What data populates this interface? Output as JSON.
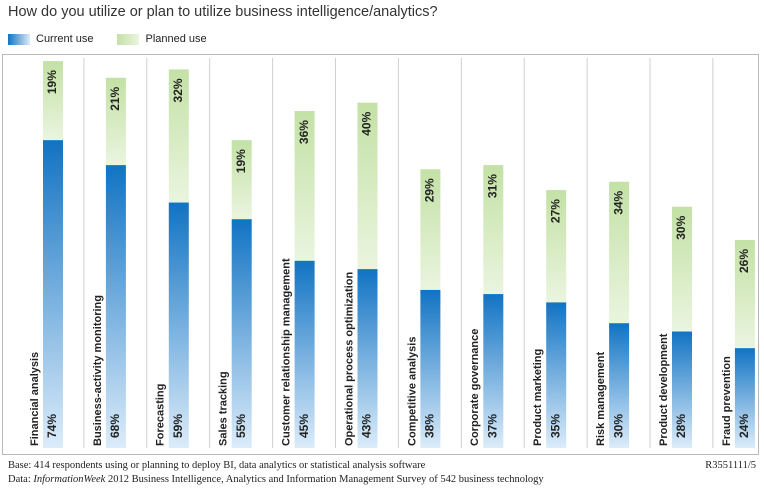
{
  "title": "How do you utilize or plan to utilize business intelligence/analytics?",
  "colors": {
    "current_top": "#1173c3",
    "current_bottom": "#dcecfa",
    "planned_top": "#c3e1a5",
    "planned_bottom": "#eaf5df",
    "divider": "#cfcfcf",
    "text": "#222222"
  },
  "chart_data": {
    "type": "bar",
    "stacked": true,
    "orientation": "vertical",
    "categories": [
      "Financial analysis",
      "Business-activity monitoring",
      "Forecasting",
      "Sales tracking",
      "Customer relationship management",
      "Operational process optimization",
      "Competitive analysis",
      "Corporate governance",
      "Product marketing",
      "Risk management",
      "Product development",
      "Fraud prevention"
    ],
    "series": [
      {
        "name": "Current use",
        "values": [
          74,
          68,
          59,
          55,
          45,
          43,
          38,
          37,
          35,
          30,
          28,
          24
        ],
        "labels": [
          "74%",
          "68%",
          "59%",
          "55%",
          "45%",
          "43%",
          "38%",
          "37%",
          "35%",
          "30%",
          "28%",
          "24%"
        ]
      },
      {
        "name": "Planned use",
        "values": [
          19,
          21,
          32,
          19,
          36,
          40,
          29,
          31,
          27,
          34,
          30,
          26
        ],
        "labels": [
          "19%",
          "21%",
          "32%",
          "19%",
          "36%",
          "40%",
          "29%",
          "31%",
          "27%",
          "34%",
          "30%",
          "26%"
        ]
      }
    ],
    "ylim": [
      0,
      100
    ],
    "grid": false,
    "legend_position": "top-left"
  },
  "footer": {
    "base": "Base: 414 respondents using or planning to deploy BI, data analytics or statistical analysis software",
    "data_prefix": "Data: ",
    "data_italic": "InformationWeek",
    "data_rest": " 2012 Business Intelligence, Analytics and Information Management Survey of 542 business technology",
    "code": "R3551111/5"
  }
}
